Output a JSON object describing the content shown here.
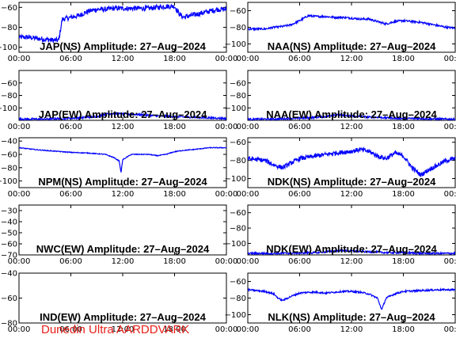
{
  "footer_label": "Dunedin Ultra AARDDVARK",
  "line_color": "#0000ff",
  "xticks": [
    "00:00",
    "06:00",
    "12:00",
    "18:00",
    "00:00"
  ],
  "chart_data": [
    {
      "type": "line",
      "title": "JAP(NS) Amplitude: 27–Aug–2024",
      "col": 0,
      "row": 0,
      "ylim": [
        -105,
        -55
      ],
      "yticks": [
        -100,
        -80,
        -60
      ],
      "noise": 2.5,
      "x": [
        0,
        1,
        2,
        3,
        4,
        4.6,
        5,
        6,
        7,
        8,
        9,
        10,
        11,
        12,
        13,
        14,
        15,
        16,
        17,
        18,
        18.5,
        19,
        20,
        21,
        22,
        23,
        24
      ],
      "values": [
        -90,
        -90,
        -91,
        -92,
        -93,
        -93,
        -72,
        -70,
        -68,
        -64,
        -62,
        -62,
        -61,
        -61,
        -61,
        -61,
        -61,
        -60,
        -59,
        -59,
        -66,
        -70,
        -68,
        -66,
        -64,
        -62,
        -62
      ]
    },
    {
      "type": "line",
      "title": "NAA(NS) Amplitude: 27–Aug–2024",
      "col": 1,
      "row": 0,
      "ylim": [
        -110,
        -50
      ],
      "yticks": [
        -100,
        -80,
        -60
      ],
      "noise": 1.2,
      "x": [
        0,
        2,
        3,
        4,
        5,
        6,
        7,
        8,
        9,
        10,
        11,
        12,
        13,
        14,
        15,
        16,
        17,
        18,
        19,
        20,
        21,
        22,
        23,
        24
      ],
      "values": [
        -82,
        -82,
        -80,
        -79,
        -77,
        -72,
        -66,
        -67,
        -67,
        -68,
        -68,
        -69,
        -70,
        -70,
        -73,
        -76,
        -73,
        -72,
        -73,
        -74,
        -76,
        -78,
        -80,
        -81
      ]
    },
    {
      "type": "line",
      "title": "JAP(EW) Amplitude: 27–Aug–2024",
      "col": 0,
      "row": 1,
      "ylim": [
        -120,
        -40
      ],
      "yticks": [
        -100,
        -80,
        -60
      ],
      "noise": 1.5,
      "x": [
        0,
        3,
        5,
        7,
        9,
        10,
        11,
        12,
        13,
        14,
        15,
        16,
        18,
        20,
        22,
        24
      ],
      "values": [
        -118,
        -118,
        -117,
        -116,
        -114,
        -110,
        -109,
        -110,
        -110,
        -111,
        -112,
        -113,
        -114,
        -115,
        -116,
        -117
      ]
    },
    {
      "type": "line",
      "title": "NAA(EW) Amplitude: 27–Aug–2024",
      "col": 1,
      "row": 1,
      "ylim": [
        -120,
        -40
      ],
      "yticks": [
        -100,
        -80,
        -60
      ],
      "noise": 1.5,
      "x": [
        0,
        3,
        5,
        7,
        9,
        10,
        11,
        12,
        13,
        14,
        15,
        16,
        18,
        20,
        22,
        24
      ],
      "values": [
        -118,
        -118,
        -117,
        -116,
        -114,
        -111,
        -112,
        -113,
        -114,
        -115,
        -115,
        -116,
        -117,
        -117,
        -118,
        -118
      ]
    },
    {
      "type": "line",
      "title": "NPM(NS) Amplitude: 27–Aug–2024",
      "col": 0,
      "row": 2,
      "ylim": [
        -110,
        -35
      ],
      "yticks": [
        -100,
        -80,
        -60,
        -40
      ],
      "noise": 0.6,
      "x": [
        0,
        2,
        4,
        6,
        8,
        10,
        11,
        11.6,
        11.8,
        12,
        12.5,
        13,
        14,
        15,
        16,
        17,
        18,
        19,
        20,
        22,
        24
      ],
      "values": [
        -50,
        -53,
        -55,
        -57,
        -58,
        -60,
        -65,
        -70,
        -88,
        -68,
        -64,
        -60,
        -60,
        -60,
        -62,
        -60,
        -56,
        -54,
        -53,
        -50,
        -50
      ]
    },
    {
      "type": "line",
      "title": "NDK(NS) Amplitude: 27–Aug–2024",
      "col": 1,
      "row": 2,
      "ylim": [
        -110,
        -55
      ],
      "yticks": [
        -100,
        -80,
        -60
      ],
      "noise": 2.5,
      "x": [
        0,
        2,
        3,
        4,
        5,
        6,
        8,
        10,
        12,
        13,
        14,
        15,
        16,
        17,
        18,
        19,
        20,
        21,
        22,
        23,
        24
      ],
      "values": [
        -78,
        -80,
        -85,
        -88,
        -83,
        -78,
        -75,
        -72,
        -70,
        -68,
        -70,
        -75,
        -78,
        -72,
        -75,
        -88,
        -96,
        -90,
        -85,
        -80,
        -78
      ]
    },
    {
      "type": "line",
      "title": "NWC(EW) Amplitude: 27–Aug–2024",
      "col": 0,
      "row": 3,
      "ylim": [
        -70,
        -25
      ],
      "yticks": [
        -70,
        -60,
        -50,
        -40,
        -30
      ],
      "noise": 0,
      "x": [],
      "values": []
    },
    {
      "type": "line",
      "title": "NDK(EW) Amplitude: 27–Aug–2024",
      "col": 1,
      "row": 3,
      "ylim": [
        -115,
        -50
      ],
      "yticks": [
        -100,
        -80,
        -60
      ],
      "noise": 1.2,
      "x": [
        0,
        4,
        8,
        10,
        11,
        12,
        14,
        16,
        18,
        20,
        24
      ],
      "values": [
        -113,
        -113,
        -112,
        -110,
        -109,
        -110,
        -111,
        -112,
        -112,
        -113,
        -113
      ]
    },
    {
      "type": "line",
      "title": "IND(EW) Amplitude: 27–Aug–2024",
      "col": 0,
      "row": 4,
      "ylim": [
        -80,
        -40
      ],
      "yticks": [
        -80,
        -60,
        -40
      ],
      "noise": 0,
      "x": [],
      "values": []
    },
    {
      "type": "line",
      "title": "NLK(NS) Amplitude: 27–Aug–2024",
      "col": 1,
      "row": 4,
      "ylim": [
        -110,
        -50
      ],
      "yticks": [
        -100,
        -80,
        -60
      ],
      "noise": 1.0,
      "x": [
        0,
        1,
        2,
        3,
        3.5,
        4,
        5,
        6,
        7,
        8,
        9,
        10,
        11,
        12,
        13,
        14,
        15,
        15.5,
        16,
        17,
        18,
        20,
        22,
        24
      ],
      "values": [
        -70,
        -71,
        -72,
        -75,
        -80,
        -83,
        -78,
        -74,
        -73,
        -73,
        -74,
        -73,
        -72,
        -72,
        -73,
        -75,
        -80,
        -94,
        -80,
        -75,
        -72,
        -71,
        -70,
        -70
      ]
    }
  ]
}
